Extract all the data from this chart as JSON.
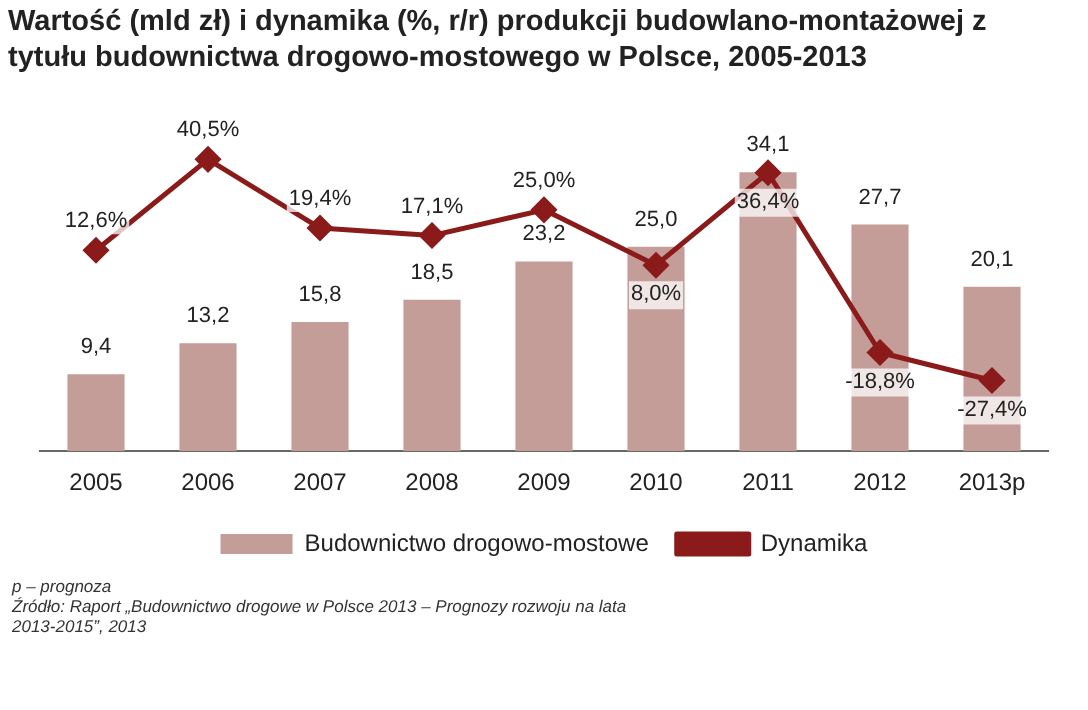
{
  "chart_data": {
    "type": "bar",
    "title": "Wartość (mld zł) i dynamika (%, r/r) produkcji budowlano-montażowej z tytułu budownictwa drogowo-mostowego w Polsce, 2005-2013",
    "categories": [
      "2005",
      "2006",
      "2007",
      "2008",
      "2009",
      "2010",
      "2011",
      "2012",
      "2013p"
    ],
    "series": [
      {
        "name": "Budownictwo drogowo-mostowe",
        "color": "#c49c98",
        "values": [
          9.4,
          13.2,
          15.8,
          18.5,
          23.2,
          25.0,
          34.1,
          27.7,
          20.1
        ],
        "value_labels": [
          "9,4",
          "13,2",
          "15,8",
          "18,5",
          "23,2",
          "25,0",
          "34,1",
          "27,7",
          "20,1"
        ]
      },
      {
        "name": "Dynamika",
        "type": "line",
        "axis": "y2",
        "color": "#8b1a1a",
        "marker": "diamond",
        "values": [
          12.6,
          40.5,
          19.4,
          17.1,
          25.0,
          8.0,
          36.4,
          -18.8,
          -27.4
        ],
        "value_labels": [
          "12,6%",
          "40,5%",
          "19,4%",
          "17,1%",
          "25,0%",
          "8,0%",
          "36,4%",
          "-18,8%",
          "-27,4%"
        ]
      }
    ],
    "tick_labels": "x",
    "grid": false,
    "legend": "bottom",
    "annotations": [
      "p – prognoza",
      "Źródło: Raport „Budownictwo drogowe w Polsce 2013 – Prognozy rozwoju na lata 2013-2015”, 2013"
    ]
  }
}
